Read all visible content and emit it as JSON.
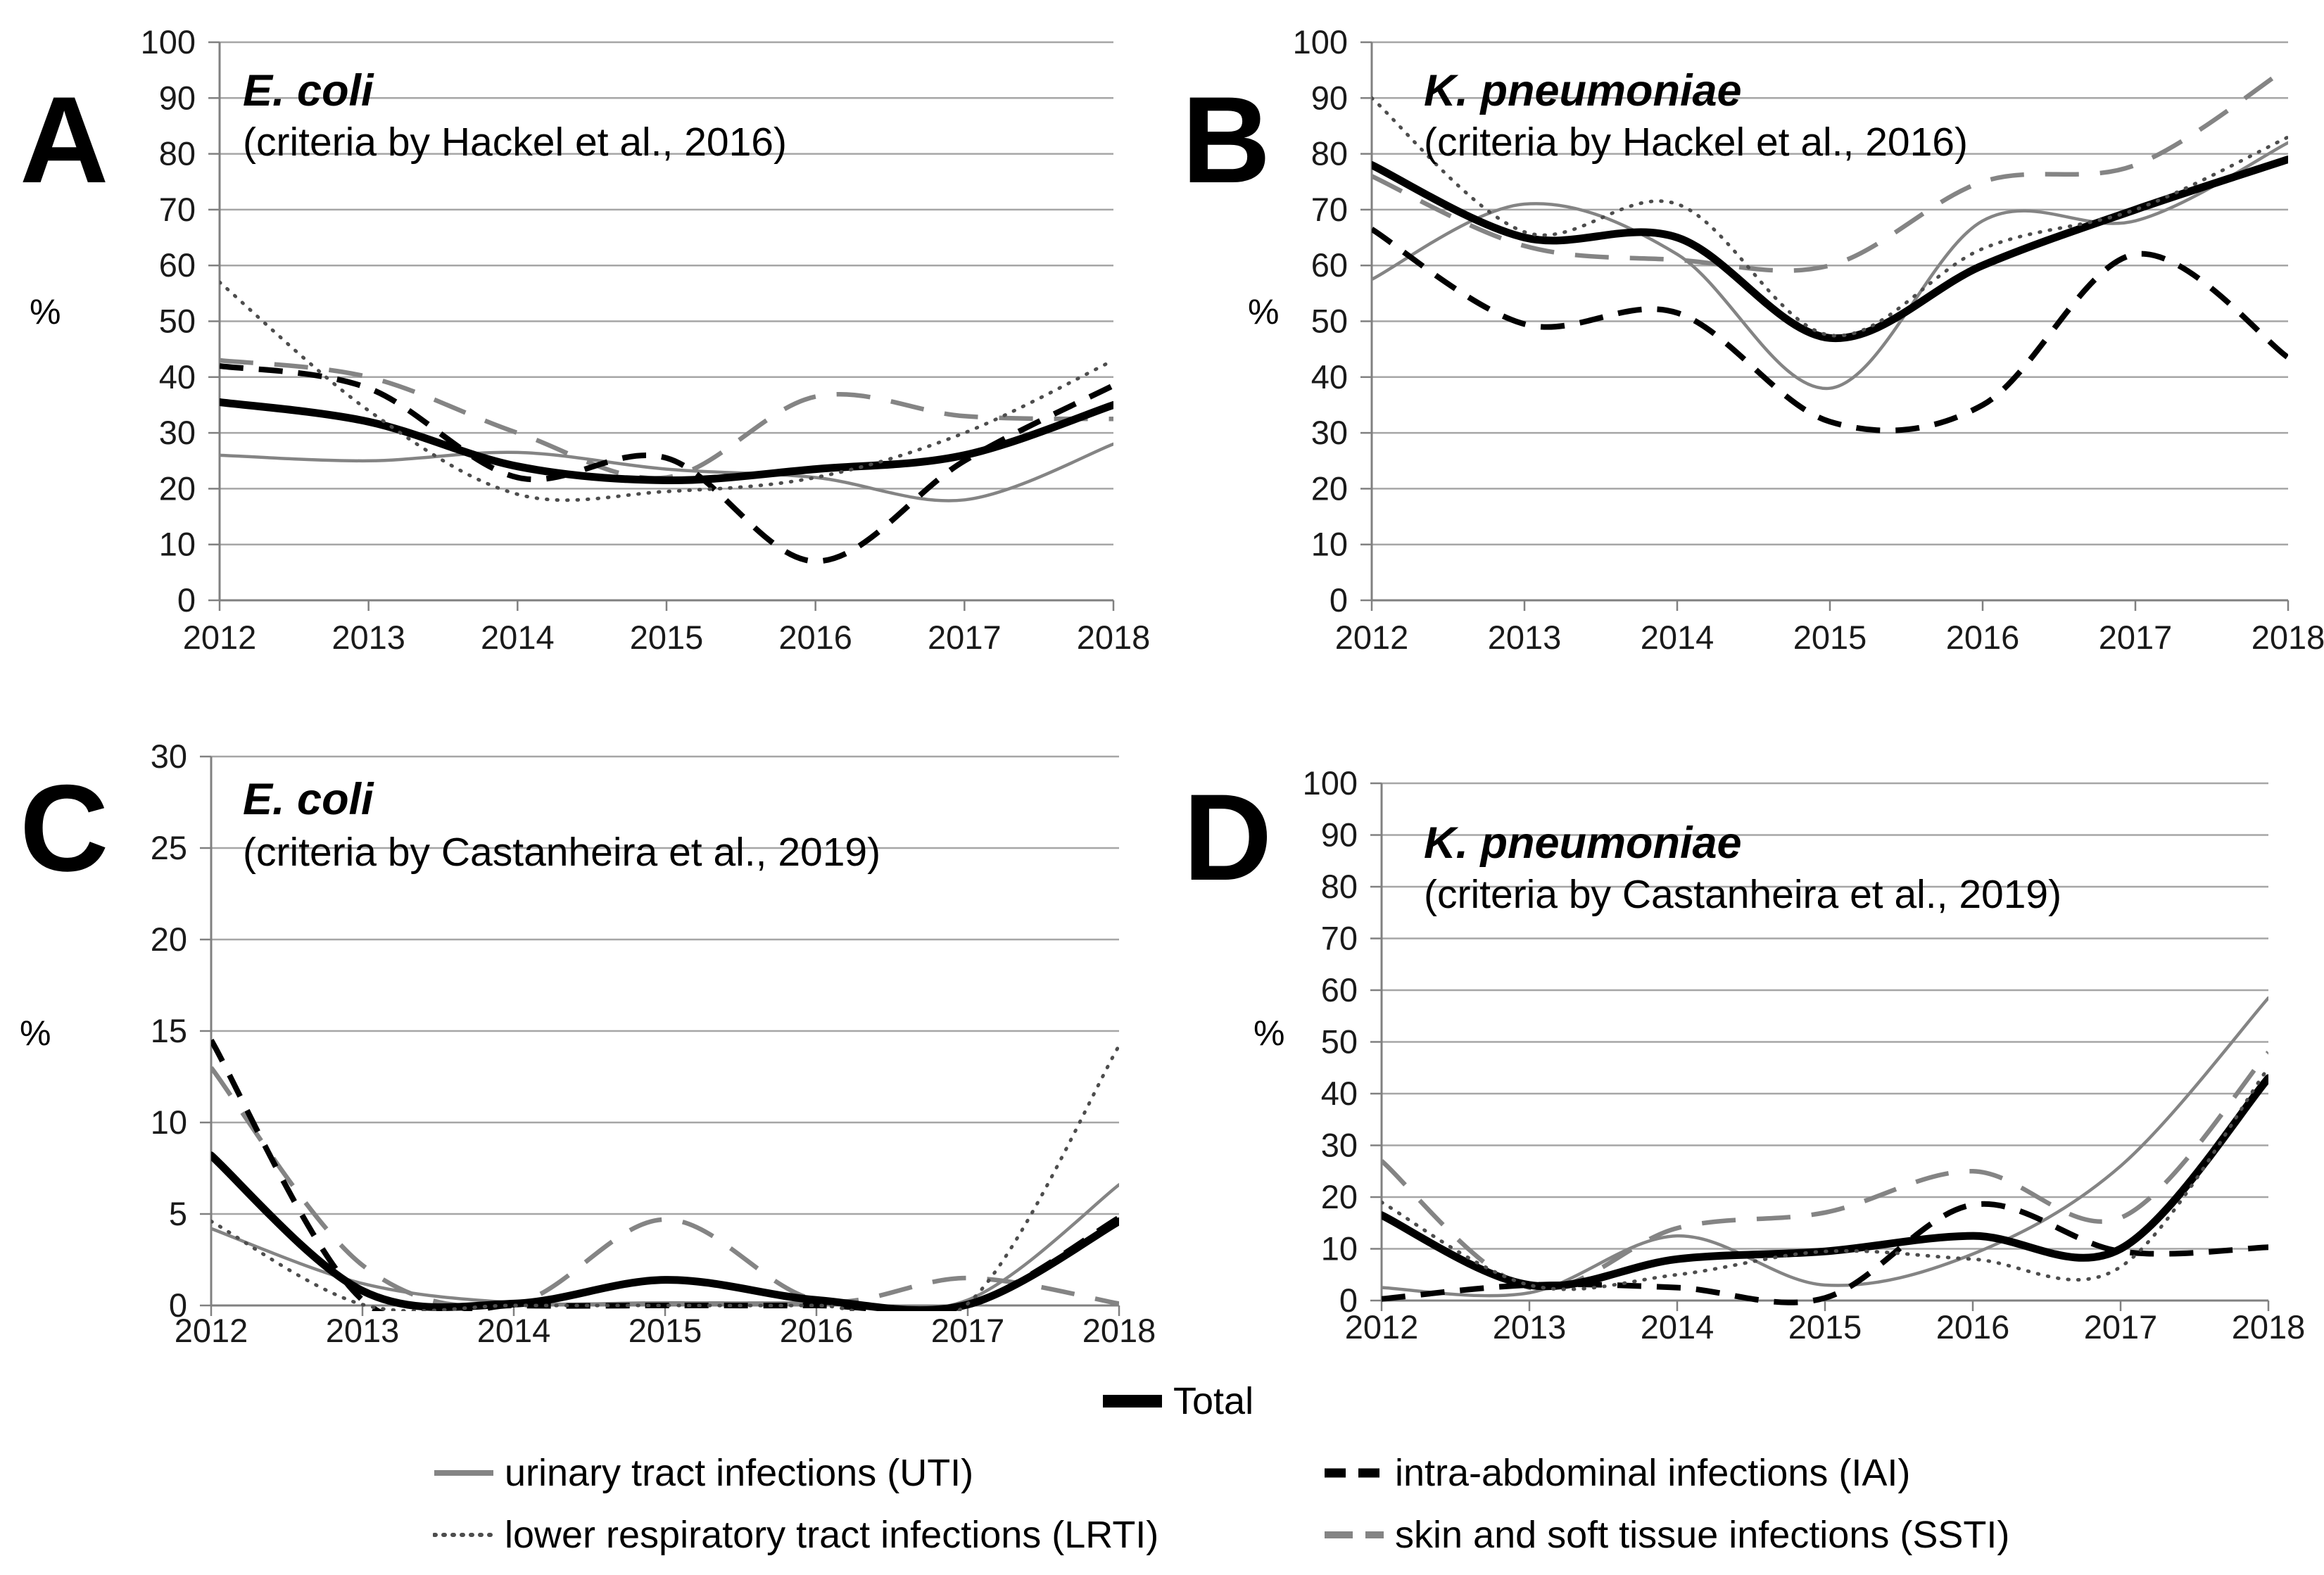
{
  "figure": {
    "background": "#ffffff",
    "gridline_color": "#a6a6a6",
    "axis_color": "#808080",
    "tick_label_color": "#1a1a1a"
  },
  "legend": {
    "items": [
      {
        "key": "total",
        "label": "Total",
        "color": "#000000",
        "pattern": "solid-thick"
      },
      {
        "key": "uti",
        "label": "urinary tract infections (UTI)",
        "color": "#848484",
        "pattern": "solid"
      },
      {
        "key": "iai",
        "label": "intra-abdominal infections (IAI)",
        "color": "#000000",
        "pattern": "dashed"
      },
      {
        "key": "lrti",
        "label": "lower respiratory tract infections (LRTI)",
        "color": "#4d4d4d",
        "pattern": "dotted"
      },
      {
        "key": "ssti",
        "label": "skin and soft tissue infections (SSTI)",
        "color": "#848484",
        "pattern": "long-dash"
      }
    ]
  },
  "chart_data": [
    {
      "type": "line",
      "panel_label": "A",
      "title": "E. coli",
      "subtitle": "(criteria by Hackel et al., 2016)",
      "ylabel": "%",
      "x": [
        2012,
        2013,
        2014,
        2015,
        2016,
        2017,
        2018
      ],
      "ylim": [
        0,
        100
      ],
      "ytick_step": 10,
      "grid": true,
      "legend_position": "bottom-shared",
      "series": [
        {
          "key": "total",
          "name": "Total",
          "color": "#000000",
          "pattern": "solid-thick",
          "values": [
            35.5,
            32,
            24,
            21.5,
            23.5,
            26,
            35
          ]
        },
        {
          "key": "uti",
          "name": "urinary tract infections (UTI)",
          "color": "#848484",
          "pattern": "solid",
          "values": [
            26,
            25,
            26.5,
            23.5,
            22,
            18,
            28
          ]
        },
        {
          "key": "iai",
          "name": "intra-abdominal infections (IAI)",
          "color": "#000000",
          "pattern": "dashed",
          "values": [
            42,
            38,
            22,
            25.5,
            7,
            25,
            38.5
          ]
        },
        {
          "key": "lrti",
          "name": "lower respiratory tract infections (LRTI)",
          "color": "#4d4d4d",
          "pattern": "dotted",
          "values": [
            57,
            34,
            19,
            19.5,
            22,
            30,
            43
          ]
        },
        {
          "key": "ssti",
          "name": "skin and soft tissue infections (SSTI)",
          "color": "#848484",
          "pattern": "long-dash",
          "values": [
            43,
            40,
            30,
            22,
            36.5,
            33,
            32.5
          ]
        }
      ]
    },
    {
      "type": "line",
      "panel_label": "B",
      "title": "K. pneumoniae",
      "subtitle": "(criteria by Hackel et al., 2016)",
      "ylabel": "%",
      "x": [
        2012,
        2013,
        2014,
        2015,
        2016,
        2017,
        2018
      ],
      "ylim": [
        0,
        100
      ],
      "ytick_step": 10,
      "grid": true,
      "legend_position": "bottom-shared",
      "series": [
        {
          "key": "total",
          "name": "Total",
          "color": "#000000",
          "pattern": "solid-thick",
          "values": [
            78,
            65,
            65,
            47,
            60,
            70,
            79
          ]
        },
        {
          "key": "uti",
          "name": "urinary tract infections (UTI)",
          "color": "#848484",
          "pattern": "solid",
          "values": [
            57.5,
            71,
            62,
            38,
            68,
            68,
            82
          ]
        },
        {
          "key": "iai",
          "name": "intra-abdominal infections (IAI)",
          "color": "#000000",
          "pattern": "dashed",
          "values": [
            66.5,
            49.5,
            51.5,
            32,
            35,
            62,
            43.5
          ]
        },
        {
          "key": "lrti",
          "name": "lower respiratory tract infections (LRTI)",
          "color": "#4d4d4d",
          "pattern": "dotted",
          "values": [
            90,
            66,
            71,
            47.5,
            63,
            70,
            83
          ]
        },
        {
          "key": "ssti",
          "name": "skin and soft tissue infections (SSTI)",
          "color": "#848484",
          "pattern": "long-dash",
          "values": [
            76,
            63.5,
            61,
            60,
            75,
            78,
            95.5
          ]
        }
      ]
    },
    {
      "type": "line",
      "panel_label": "C",
      "title": "E. coli",
      "subtitle": "(criteria by Castanheira et al., 2019)",
      "ylabel": "%",
      "x": [
        2012,
        2013,
        2014,
        2015,
        2016,
        2017,
        2018
      ],
      "ylim": [
        0,
        30
      ],
      "ytick_step": 5,
      "grid": true,
      "legend_position": "bottom-shared",
      "series": [
        {
          "key": "total",
          "name": "Total",
          "color": "#000000",
          "pattern": "solid-thick",
          "values": [
            8.2,
            0.8,
            0.1,
            1.4,
            0.3,
            0.05,
            4.6
          ]
        },
        {
          "key": "uti",
          "name": "urinary tract infections (UTI)",
          "color": "#848484",
          "pattern": "solid",
          "values": [
            4.2,
            1.2,
            0.15,
            0.15,
            0.15,
            0.3,
            6.6
          ]
        },
        {
          "key": "iai",
          "name": "intra-abdominal infections (IAI)",
          "color": "#000000",
          "pattern": "dashed",
          "values": [
            14.5,
            0.3,
            0,
            0,
            0,
            0.05,
            4.8
          ]
        },
        {
          "key": "lrti",
          "name": "lower respiratory tract infections (LRTI)",
          "color": "#4d4d4d",
          "pattern": "dotted",
          "values": [
            4.6,
            0.05,
            0,
            0,
            0,
            0.1,
            14.2
          ]
        },
        {
          "key": "ssti",
          "name": "skin and soft tissue infections (SSTI)",
          "color": "#848484",
          "pattern": "long-dash",
          "values": [
            13,
            2.2,
            0.1,
            4.7,
            0.3,
            1.5,
            0.1
          ]
        }
      ]
    },
    {
      "type": "line",
      "panel_label": "D",
      "title": "K. pneumoniae",
      "subtitle": "(criteria by Castanheira et al., 2019)",
      "ylabel": "%",
      "x": [
        2012,
        2013,
        2014,
        2015,
        2016,
        2017,
        2018
      ],
      "ylim": [
        0,
        100
      ],
      "ytick_step": 10,
      "grid": true,
      "legend_position": "bottom-shared",
      "series": [
        {
          "key": "total",
          "name": "Total",
          "color": "#000000",
          "pattern": "solid-thick",
          "values": [
            16.5,
            3,
            8,
            9.5,
            12.5,
            10,
            43
          ]
        },
        {
          "key": "uti",
          "name": "urinary tract infections (UTI)",
          "color": "#848484",
          "pattern": "solid",
          "values": [
            2.5,
            1.5,
            12.5,
            3,
            9,
            26,
            58.5
          ]
        },
        {
          "key": "iai",
          "name": "intra-abdominal infections (IAI)",
          "color": "#000000",
          "pattern": "dashed",
          "values": [
            0.3,
            3,
            2.5,
            0.5,
            18.5,
            9.5,
            10.3
          ]
        },
        {
          "key": "lrti",
          "name": "lower respiratory tract infections (LRTI)",
          "color": "#4d4d4d",
          "pattern": "dotted",
          "values": [
            19,
            3,
            5,
            9.5,
            8,
            6.5,
            45
          ]
        },
        {
          "key": "ssti",
          "name": "skin and soft tissue infections (SSTI)",
          "color": "#848484",
          "pattern": "long-dash",
          "values": [
            27,
            2.5,
            14,
            17,
            25,
            16,
            48
          ]
        }
      ]
    }
  ]
}
